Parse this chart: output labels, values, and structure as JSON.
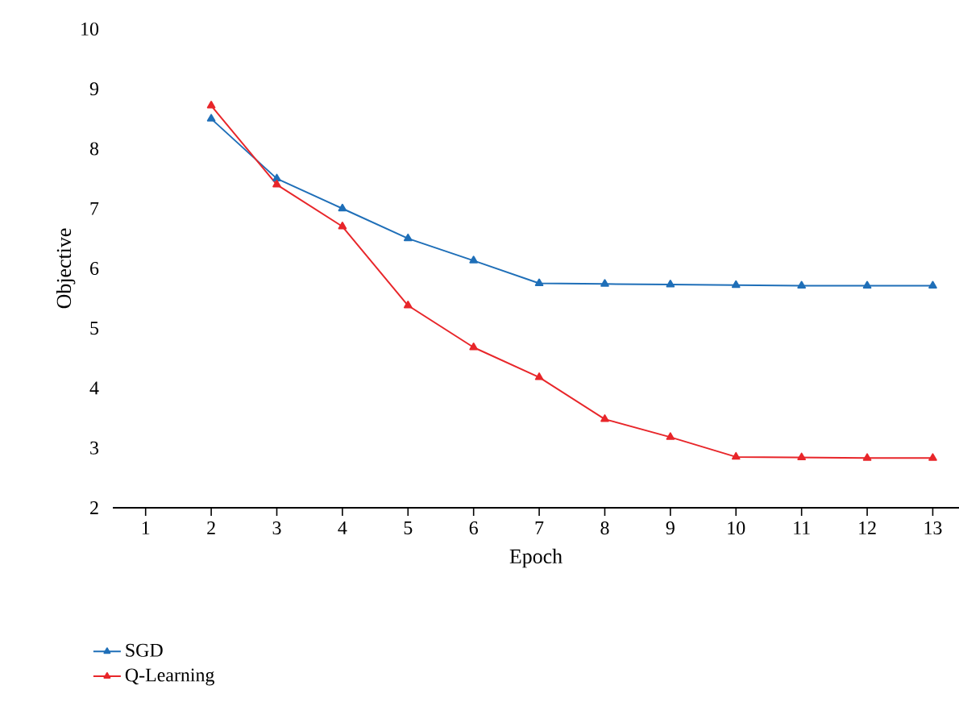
{
  "chart_data": {
    "type": "line",
    "xlabel": "Epoch",
    "ylabel": "Objective",
    "x": [
      2,
      3,
      4,
      5,
      6,
      7,
      8,
      9,
      10,
      11,
      12,
      13
    ],
    "xlim": [
      0.5,
      13.4
    ],
    "xticks": [
      1,
      2,
      3,
      4,
      5,
      6,
      7,
      8,
      9,
      10,
      11,
      12,
      13
    ],
    "ylim": [
      2,
      10
    ],
    "yticks": [
      2,
      3,
      4,
      5,
      6,
      7,
      8,
      9,
      10
    ],
    "marker": "triangle",
    "line_style": "solid",
    "legend": "bottom left",
    "grid": false,
    "series": [
      {
        "name": "SGD",
        "color": "#1f6fb8",
        "values": [
          8.5,
          7.5,
          7.0,
          6.5,
          6.13,
          5.75,
          5.74,
          5.73,
          5.72,
          5.71,
          5.71,
          5.71
        ]
      },
      {
        "name": "Q-Learning",
        "color": "#e8262a",
        "values": [
          8.72,
          7.4,
          6.7,
          5.38,
          4.68,
          4.18,
          3.48,
          3.18,
          2.85,
          2.84,
          2.83,
          2.83
        ]
      }
    ]
  }
}
